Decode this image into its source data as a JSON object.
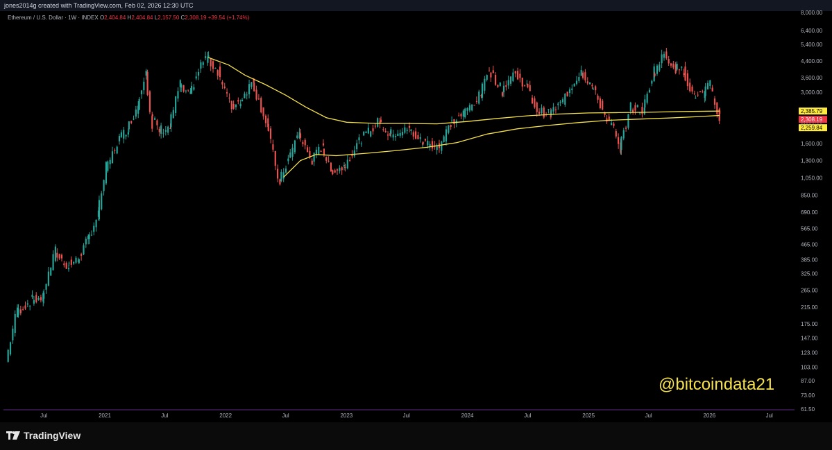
{
  "header": {
    "creator_text": "jones2014g created with TradingView.com, Feb 02, 2026 12:30 UTC"
  },
  "legend": {
    "symbol": "Ethereum / U.S. Dollar · 1W · INDEX",
    "o_label": "O",
    "o_value": "2,404.84",
    "h_label": "H",
    "h_value": "2,404.84",
    "l_label": "L",
    "l_value": "2,157.50",
    "c_label": "C",
    "c_value": "2,308.19",
    "change": "+39.54 (+1.74%)"
  },
  "watermark": "@bitcoindata21",
  "footer": {
    "brand": "TradingView"
  },
  "colors": {
    "up": "#26a69a",
    "down": "#ef5350",
    "ma": "#f5e14a",
    "background": "#000000",
    "price_tag": "#f23645",
    "ma_tag": "#ffeb3b"
  },
  "chart_data": {
    "type": "candlestick",
    "title": "Ethereum / U.S. Dollar · 1W · INDEX",
    "scale": "log",
    "ylim": [
      61.5,
      8000
    ],
    "grid": false,
    "y_ticks": [
      "8,000.00",
      "6,400.00",
      "5,400.00",
      "4,400.00",
      "3,600.00",
      "3,000.00",
      "2,100.00",
      "1,600.00",
      "1,300.00",
      "1,050.00",
      "850.00",
      "690.00",
      "565.00",
      "465.00",
      "385.00",
      "325.00",
      "265.00",
      "215.00",
      "175.00",
      "147.00",
      "123.00",
      "103.00",
      "87.00",
      "73.00",
      "61.50"
    ],
    "x_ticks": [
      "Jul",
      "2021",
      "Jul",
      "2022",
      "Jul",
      "2023",
      "Jul",
      "2024",
      "Jul",
      "2025",
      "Jul",
      "2026",
      "Jul"
    ],
    "x_tick_dates": [
      "2020-07-01",
      "2021-01-01",
      "2021-07-01",
      "2022-01-01",
      "2022-07-01",
      "2023-01-01",
      "2023-07-01",
      "2024-01-01",
      "2024-07-01",
      "2025-01-01",
      "2025-07-01",
      "2026-01-01",
      "2026-07-01"
    ],
    "price_labels": [
      {
        "text": "2,385.79",
        "value": 2385.79,
        "type": "ma"
      },
      {
        "text": "2,308.19",
        "value": 2308.19,
        "type": "price"
      },
      {
        "text": "2,259.84",
        "value": 2259.84,
        "type": "ma"
      }
    ],
    "series": [
      {
        "kind": "price",
        "points": [
          [
            "2020-03-15",
            110
          ],
          [
            "2020-04-15",
            200
          ],
          [
            "2020-06-01",
            235
          ],
          [
            "2020-07-01",
            240
          ],
          [
            "2020-08-10",
            420
          ],
          [
            "2020-09-15",
            360
          ],
          [
            "2020-10-15",
            380
          ],
          [
            "2020-11-15",
            480
          ],
          [
            "2020-12-15",
            650
          ],
          [
            "2021-01-10",
            1150
          ],
          [
            "2021-02-20",
            1700
          ],
          [
            "2021-03-15",
            1900
          ],
          [
            "2021-04-15",
            2500
          ],
          [
            "2021-05-10",
            3900
          ],
          [
            "2021-05-25",
            2300
          ],
          [
            "2021-06-20",
            1900
          ],
          [
            "2021-07-20",
            1950
          ],
          [
            "2021-08-20",
            3200
          ],
          [
            "2021-09-20",
            2900
          ],
          [
            "2021-10-25",
            4200
          ],
          [
            "2021-11-10",
            4600
          ],
          [
            "2021-12-15",
            3900
          ],
          [
            "2022-01-25",
            2500
          ],
          [
            "2022-02-20",
            2700
          ],
          [
            "2022-03-28",
            3400
          ],
          [
            "2022-05-10",
            2100
          ],
          [
            "2022-06-18",
            1000
          ],
          [
            "2022-07-15",
            1300
          ],
          [
            "2022-08-15",
            1800
          ],
          [
            "2022-09-25",
            1300
          ],
          [
            "2022-10-25",
            1550
          ],
          [
            "2022-11-20",
            1150
          ],
          [
            "2022-12-28",
            1200
          ],
          [
            "2023-02-15",
            1650
          ],
          [
            "2023-04-15",
            2100
          ],
          [
            "2023-05-15",
            1800
          ],
          [
            "2023-07-15",
            1900
          ],
          [
            "2023-08-20",
            1650
          ],
          [
            "2023-10-15",
            1550
          ],
          [
            "2023-11-15",
            2000
          ],
          [
            "2023-12-25",
            2300
          ],
          [
            "2024-02-15",
            2900
          ],
          [
            "2024-03-12",
            4000
          ],
          [
            "2024-04-20",
            3100
          ],
          [
            "2024-05-25",
            3800
          ],
          [
            "2024-07-01",
            3300
          ],
          [
            "2024-08-05",
            2400
          ],
          [
            "2024-09-10",
            2300
          ],
          [
            "2024-10-15",
            2600
          ],
          [
            "2024-12-15",
            3900
          ],
          [
            "2025-01-15",
            3300
          ],
          [
            "2025-02-25",
            2300
          ],
          [
            "2025-03-25",
            1900
          ],
          [
            "2025-04-10",
            1500
          ],
          [
            "2025-05-15",
            2500
          ],
          [
            "2025-06-20",
            2400
          ],
          [
            "2025-07-20",
            3700
          ],
          [
            "2025-08-24",
            4800
          ],
          [
            "2025-09-25",
            4100
          ],
          [
            "2025-10-20",
            3900
          ],
          [
            "2025-11-20",
            2900
          ],
          [
            "2025-12-20",
            2950
          ],
          [
            "2026-01-10",
            3300
          ],
          [
            "2026-02-01",
            2308.19
          ]
        ]
      },
      {
        "kind": "ma_upper",
        "points": [
          [
            "2021-11-10",
            4600
          ],
          [
            "2022-01-10",
            4200
          ],
          [
            "2022-03-01",
            3700
          ],
          [
            "2022-05-01",
            3300
          ],
          [
            "2022-07-01",
            2900
          ],
          [
            "2022-09-01",
            2500
          ],
          [
            "2022-11-01",
            2200
          ],
          [
            "2023-01-01",
            2080
          ],
          [
            "2023-04-01",
            2050
          ],
          [
            "2023-07-01",
            2050
          ],
          [
            "2023-10-01",
            2040
          ],
          [
            "2024-01-01",
            2100
          ],
          [
            "2024-04-01",
            2180
          ],
          [
            "2024-07-01",
            2250
          ],
          [
            "2024-10-01",
            2300
          ],
          [
            "2025-01-01",
            2330
          ],
          [
            "2025-04-01",
            2340
          ],
          [
            "2025-07-01",
            2350
          ],
          [
            "2025-10-01",
            2370
          ],
          [
            "2026-02-01",
            2385.79
          ]
        ]
      },
      {
        "kind": "ma_lower",
        "points": [
          [
            "2022-06-25",
            1060
          ],
          [
            "2022-08-15",
            1300
          ],
          [
            "2022-10-01",
            1400
          ],
          [
            "2022-12-01",
            1380
          ],
          [
            "2023-03-01",
            1420
          ],
          [
            "2023-06-01",
            1470
          ],
          [
            "2023-09-01",
            1530
          ],
          [
            "2023-12-01",
            1620
          ],
          [
            "2024-03-01",
            1800
          ],
          [
            "2024-06-01",
            1920
          ],
          [
            "2024-09-01",
            2000
          ],
          [
            "2024-12-01",
            2070
          ],
          [
            "2025-03-01",
            2130
          ],
          [
            "2025-06-01",
            2160
          ],
          [
            "2025-09-01",
            2190
          ],
          [
            "2025-12-01",
            2230
          ],
          [
            "2026-02-01",
            2259.84
          ]
        ]
      }
    ]
  }
}
